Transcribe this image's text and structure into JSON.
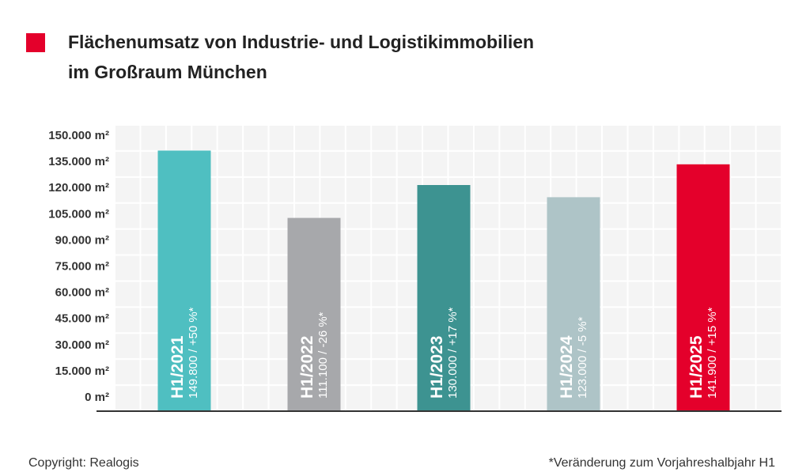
{
  "header": {
    "title_line1": "Flächenumsatz von Industrie- und Logistikimmobilien",
    "title_line2": "im Großraum München",
    "marker_color": "#e4002b"
  },
  "chart_data": {
    "type": "bar",
    "title": "Flächenumsatz von Industrie- und Logistikimmobilien im Großraum München",
    "ylim": [
      0,
      150000
    ],
    "y_ticks": [
      {
        "value": 150000,
        "label": "150.000 m²"
      },
      {
        "value": 135000,
        "label": "135.000 m²"
      },
      {
        "value": 120000,
        "label": "120.000 m²"
      },
      {
        "value": 105000,
        "label": "105.000 m²"
      },
      {
        "value": 90000,
        "label": "90.000 m²"
      },
      {
        "value": 75000,
        "label": "75.000 m²"
      },
      {
        "value": 60000,
        "label": "60.000 m²"
      },
      {
        "value": 45000,
        "label": "45.000 m²"
      },
      {
        "value": 30000,
        "label": "30.000 m²"
      },
      {
        "value": 15000,
        "label": "15.000 m²"
      },
      {
        "value": 0,
        "label": "0 m²"
      }
    ],
    "grid": true,
    "bars": [
      {
        "category": "H1/2021",
        "value": 149800,
        "label": "149.800 / +50 %*",
        "color": "#4fbfc1"
      },
      {
        "category": "H1/2022",
        "value": 111100,
        "label": "111.100 / -26 %*",
        "color": "#a7a8ab"
      },
      {
        "category": "H1/2023",
        "value": 130000,
        "label": "130.000 / +17 %*",
        "color": "#3d9391"
      },
      {
        "category": "H1/2024",
        "value": 123000,
        "label": "123.000 / -5 %*",
        "color": "#aec4c7"
      },
      {
        "category": "H1/2025",
        "value": 141900,
        "label": "141.900 / +15 %*",
        "color": "#e4002b"
      }
    ]
  },
  "footer": {
    "copyright": "Copyright: Realogis",
    "note": "*Veränderung zum Vorjahreshalbjahr H1"
  }
}
